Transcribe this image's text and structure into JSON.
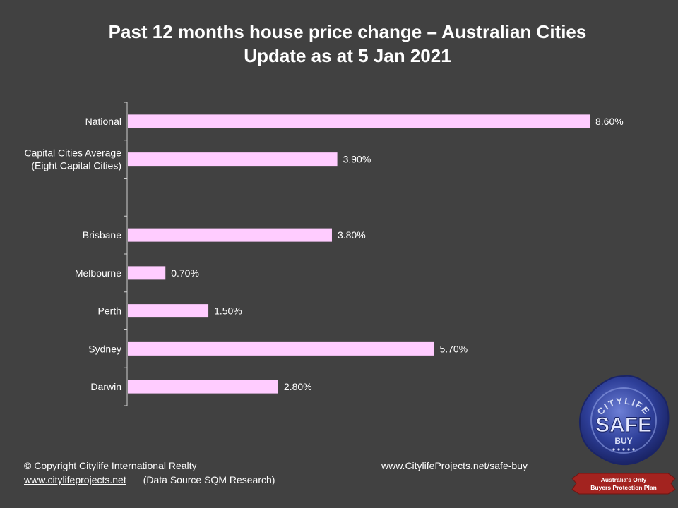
{
  "header": {
    "title_line1": "Past 12 months house price change – Australian Cities",
    "title_line2": "Update as at 5 Jan 2021"
  },
  "chart_data": {
    "type": "bar",
    "orientation": "horizontal",
    "title": "Past 12 months house price change – Australian Cities",
    "subtitle": "Update as at 5 Jan 2021",
    "categories": [
      "National",
      "Capital Cities Average (Eight Capital Cities)",
      "",
      "Brisbane",
      "Melbourne",
      "Perth",
      "Sydney",
      "Darwin"
    ],
    "category_lines": [
      [
        "National"
      ],
      [
        "Capital Cities Average",
        "(Eight Capital Cities)"
      ],
      [],
      [
        "Brisbane"
      ],
      [
        "Melbourne"
      ],
      [
        "Perth"
      ],
      [
        "Sydney"
      ],
      [
        "Darwin"
      ]
    ],
    "values": [
      8.6,
      3.9,
      null,
      3.8,
      0.7,
      1.5,
      5.7,
      2.8
    ],
    "value_labels": [
      "8.60%",
      "3.90%",
      "",
      "3.80%",
      "0.70%",
      "1.50%",
      "5.70%",
      "2.80%"
    ],
    "xlim": [
      0,
      8.6
    ],
    "bar_color": "#ffccff",
    "grid": false,
    "legend": "none"
  },
  "footer": {
    "copyright": "© Copyright Citylife International  Realty",
    "website": "www.citylifeprojects.net",
    "source": "(Data Source SQM Research)",
    "safe_buy_url": "www.CitylifeProjects.net/safe-buy"
  },
  "badge": {
    "arc_text": "CITYLIFE",
    "main_text": "SAFE",
    "sub_text": "BUY",
    "ribbon_line1": "Australia's Only",
    "ribbon_line2": "Buyers Protection Plan",
    "seal_color": "#2e3f99",
    "ribbon_color": "#a3231f"
  }
}
